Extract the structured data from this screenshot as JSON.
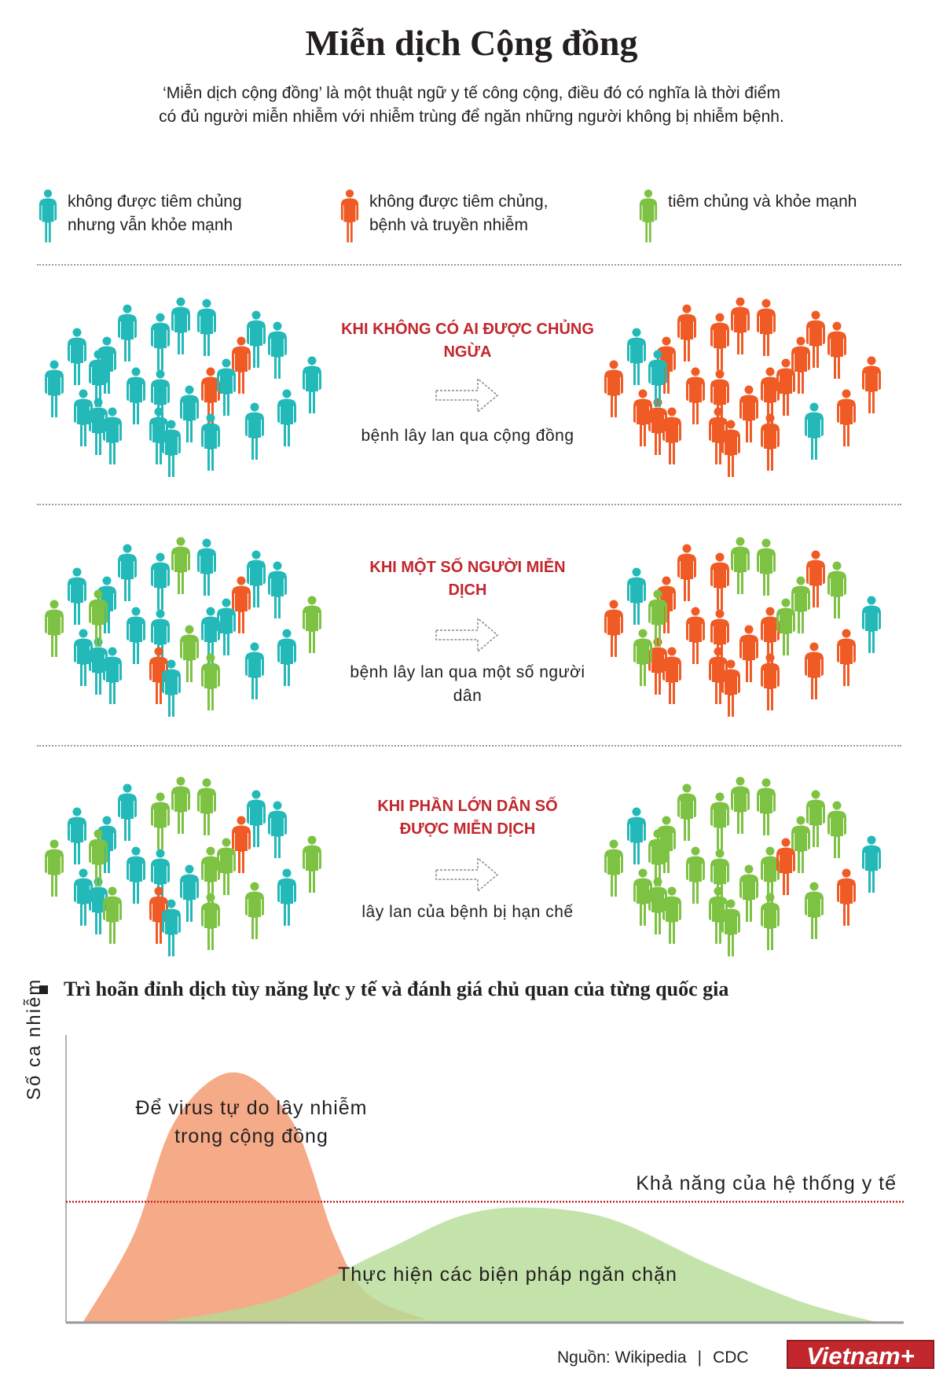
{
  "title": "Miễn dịch Cộng đồng",
  "intro": "‘Miễn dịch cộng đồng’ là một thuật ngữ y tế công cộng, điều đó có nghĩa là thời điểm có đủ người miễn nhiễm với nhiễm trùng để ngăn những người không bị nhiễm bệnh.",
  "colors": {
    "teal": "#22b9b8",
    "orange": "#f05a24",
    "green": "#7dc242",
    "red": "#c1272d"
  },
  "legend": [
    {
      "color": "teal",
      "label": "không được tiêm chủng nhưng vẫn khỏe mạnh"
    },
    {
      "color": "orange",
      "label": "không được tiêm chủng, bệnh và truyền nhiễm"
    },
    {
      "color": "green",
      "label": "tiêm chủng và khỏe mạnh"
    }
  ],
  "scenarios": [
    {
      "heading": "KHI KHÔNG CÓ AI ĐƯỢC CHỦNG NGỪA",
      "caption": "bệnh lây lan qua cộng đồng",
      "before": "tttttttttttttotttottttttt",
      "after": "otoooooooooooooooooootoot"
    },
    {
      "heading": "KHI MỘT SỐ NGƯỜI MIỄN DỊCH",
      "caption": "bệnh lây lan qua một số người dân",
      "before": "gttttgttttttgtotgottgtttg",
      "after": "otoooggooogoooooogogtoogg"
    },
    {
      "heading": "KHI PHẦN LỚN DÂN SỐ ĐƯỢC MIỄN DỊCH",
      "caption": "lây lan của bệnh bị hạn chế",
      "before": "gtttgggttttgtgotgottggtgg",
      "after": "gtggggggggggggggggggtgoog"
    }
  ],
  "section_heading": "Trì hoãn đỉnh dịch tùy năng lực y tế và đánh giá chủ quan của từng quốc gia",
  "chart_data": {
    "type": "area",
    "ylabel": "Số ca nhiễm",
    "xlabel": "",
    "ticks": "none",
    "threshold": {
      "label": "Khả năng của hệ thống y tế",
      "value": 42,
      "color": "#c1272d",
      "style": "dotted"
    },
    "series": [
      {
        "label": "Để virus tự do lây nhiễm trong cộng đồng",
        "color": "#f4a582",
        "points": [
          [
            2,
            0
          ],
          [
            8,
            30
          ],
          [
            13,
            70
          ],
          [
            20,
            87
          ],
          [
            27,
            70
          ],
          [
            32,
            30
          ],
          [
            36,
            10
          ],
          [
            43,
            1
          ]
        ]
      },
      {
        "label": "Thực hiện các biện pháp ngăn chặn",
        "color": "#b5dc95",
        "points": [
          [
            11,
            0
          ],
          [
            25,
            8
          ],
          [
            38,
            25
          ],
          [
            47,
            37
          ],
          [
            55,
            40
          ],
          [
            65,
            36
          ],
          [
            77,
            20
          ],
          [
            88,
            7
          ],
          [
            97,
            0
          ]
        ]
      }
    ]
  },
  "footer": {
    "source": "Nguồn: Wikipedia",
    "separator": "|",
    "source2": "CDC",
    "logo": "Vietnam+"
  }
}
